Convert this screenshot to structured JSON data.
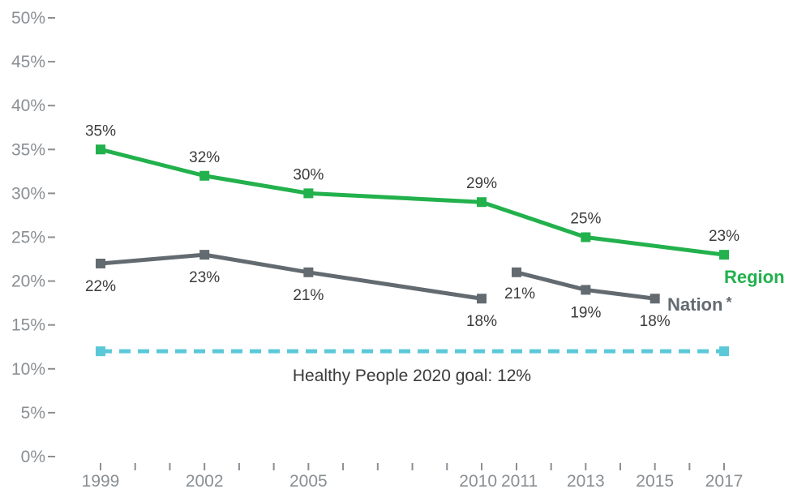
{
  "chart_data": {
    "type": "line",
    "x_positions": [
      "1999",
      "2000",
      "2001",
      "2002",
      "2003",
      "2004",
      "2005",
      "2006",
      "2007",
      "2008",
      "2009",
      "2010",
      "2011",
      "2012",
      "2013",
      "2014",
      "2015",
      "2016",
      "2017"
    ],
    "x_tick_labels": [
      "1999",
      "2002",
      "2005",
      "2010",
      "2011",
      "2013",
      "2015",
      "2017"
    ],
    "y_ticks": [
      "0%",
      "5%",
      "10%",
      "15%",
      "20%",
      "25%",
      "30%",
      "35%",
      "40%",
      "45%",
      "50%"
    ],
    "ylim": [
      0,
      50
    ],
    "grid": false,
    "series": [
      {
        "name": "Region",
        "color": "#22b14c",
        "segments": [
          {
            "x": [
              1999,
              2002,
              2005,
              2010,
              2013,
              2017
            ],
            "values": [
              35,
              32,
              30,
              29,
              25,
              23
            ],
            "labels": [
              "35%",
              "32%",
              "30%",
              "29%",
              "25%",
              "23%"
            ]
          }
        ]
      },
      {
        "name": "Nation",
        "marker": "*",
        "color": "#636b71",
        "segments": [
          {
            "x": [
              1999,
              2002,
              2005,
              2010
            ],
            "values": [
              22,
              23,
              21,
              18
            ],
            "labels": [
              "22%",
              "23%",
              "21%",
              "18%"
            ]
          },
          {
            "x": [
              2011,
              2013,
              2015
            ],
            "values": [
              21,
              19,
              18
            ],
            "labels": [
              "21%",
              "19%",
              "18%"
            ]
          }
        ]
      }
    ],
    "goal": {
      "label": "Healthy People 2020 goal: 12%",
      "value": 12,
      "x": [
        1999,
        2017
      ],
      "color": "#5bc8d8"
    }
  }
}
